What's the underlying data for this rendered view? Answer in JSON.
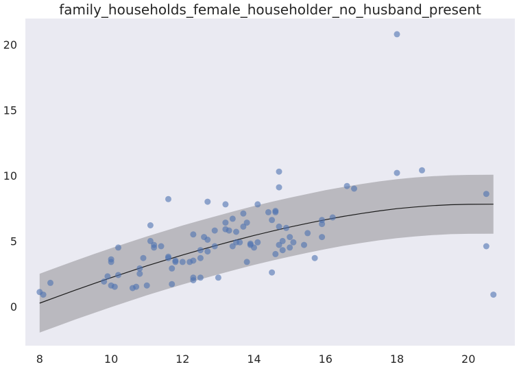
{
  "chart_data": {
    "type": "scatter",
    "title": "family_households_female_householder_no_husband_present",
    "xlabel": "",
    "ylabel": "",
    "xlim": [
      7.6,
      21.3
    ],
    "ylim": [
      -3.0,
      22.0
    ],
    "x_ticks": [
      8,
      10,
      12,
      14,
      16,
      18,
      20
    ],
    "y_ticks": [
      0,
      5,
      10,
      15,
      20
    ],
    "grid": false,
    "background": "#eaeaf2",
    "point_color": "#4c72b0",
    "band_color": "#a9a8ae",
    "fit_line_color": "#1a1a1a",
    "fit": {
      "x": [
        8.0,
        8.5,
        9.0,
        9.5,
        10.0,
        10.5,
        11.0,
        11.5,
        12.0,
        12.5,
        13.0,
        13.5,
        14.0,
        14.5,
        15.0,
        15.5,
        16.0,
        16.5,
        17.0,
        17.5,
        18.0,
        18.5,
        19.0,
        19.5,
        20.0,
        20.7
      ],
      "y": [
        0.25,
        0.75,
        1.25,
        1.73,
        2.2,
        2.65,
        3.1,
        3.52,
        3.93,
        4.32,
        4.7,
        5.07,
        5.42,
        5.75,
        6.06,
        6.35,
        6.63,
        6.88,
        7.1,
        7.3,
        7.47,
        7.6,
        7.7,
        7.77,
        7.8,
        7.81
      ],
      "lower": [
        -2.0,
        -1.5,
        -1.0,
        -0.52,
        -0.05,
        0.4,
        0.85,
        1.27,
        1.68,
        2.07,
        2.45,
        2.82,
        3.17,
        3.5,
        3.81,
        4.1,
        4.38,
        4.63,
        4.85,
        5.05,
        5.22,
        5.35,
        5.45,
        5.52,
        5.55,
        5.56
      ],
      "upper": [
        2.5,
        3.0,
        3.5,
        3.98,
        4.45,
        4.9,
        5.35,
        5.77,
        6.18,
        6.57,
        6.95,
        7.32,
        7.67,
        8.0,
        8.31,
        8.6,
        8.88,
        9.13,
        9.35,
        9.55,
        9.72,
        9.85,
        9.95,
        10.02,
        10.05,
        10.06
      ]
    },
    "points": [
      [
        8.0,
        1.1
      ],
      [
        8.1,
        0.9
      ],
      [
        8.3,
        1.8
      ],
      [
        9.8,
        1.9
      ],
      [
        9.9,
        2.3
      ],
      [
        10.0,
        3.6
      ],
      [
        10.0,
        3.4
      ],
      [
        10.0,
        1.6
      ],
      [
        10.1,
        1.5
      ],
      [
        10.2,
        4.5
      ],
      [
        10.2,
        2.4
      ],
      [
        10.6,
        1.4
      ],
      [
        10.7,
        1.5
      ],
      [
        10.8,
        2.9
      ],
      [
        10.8,
        2.5
      ],
      [
        10.9,
        3.7
      ],
      [
        11.0,
        1.6
      ],
      [
        11.1,
        6.2
      ],
      [
        11.1,
        5.0
      ],
      [
        11.2,
        4.7
      ],
      [
        11.2,
        4.5
      ],
      [
        11.4,
        4.6
      ],
      [
        11.6,
        8.2
      ],
      [
        11.6,
        3.8
      ],
      [
        11.6,
        3.7
      ],
      [
        11.7,
        2.9
      ],
      [
        11.7,
        1.7
      ],
      [
        11.8,
        3.5
      ],
      [
        11.8,
        3.4
      ],
      [
        12.0,
        3.4
      ],
      [
        12.2,
        3.4
      ],
      [
        12.3,
        5.5
      ],
      [
        12.3,
        3.5
      ],
      [
        12.3,
        2.2
      ],
      [
        12.3,
        2.0
      ],
      [
        12.5,
        4.3
      ],
      [
        12.5,
        3.7
      ],
      [
        12.5,
        2.2
      ],
      [
        12.6,
        5.3
      ],
      [
        12.7,
        8.0
      ],
      [
        12.7,
        5.1
      ],
      [
        12.7,
        4.2
      ],
      [
        12.9,
        5.8
      ],
      [
        12.9,
        4.6
      ],
      [
        13.0,
        2.2
      ],
      [
        13.2,
        7.8
      ],
      [
        13.2,
        6.4
      ],
      [
        13.2,
        5.9
      ],
      [
        13.3,
        5.8
      ],
      [
        13.4,
        6.7
      ],
      [
        13.4,
        4.6
      ],
      [
        13.5,
        5.7
      ],
      [
        13.5,
        4.9
      ],
      [
        13.6,
        4.9
      ],
      [
        13.7,
        7.1
      ],
      [
        13.7,
        6.1
      ],
      [
        13.8,
        6.4
      ],
      [
        13.8,
        3.4
      ],
      [
        13.9,
        4.8
      ],
      [
        13.9,
        4.7
      ],
      [
        14.0,
        4.5
      ],
      [
        14.1,
        7.8
      ],
      [
        14.1,
        4.9
      ],
      [
        14.4,
        7.2
      ],
      [
        14.5,
        6.6
      ],
      [
        14.5,
        2.6
      ],
      [
        14.6,
        7.3
      ],
      [
        14.6,
        7.2
      ],
      [
        14.6,
        4.0
      ],
      [
        14.7,
        10.3
      ],
      [
        14.7,
        9.1
      ],
      [
        14.7,
        6.1
      ],
      [
        14.7,
        4.7
      ],
      [
        14.8,
        5.0
      ],
      [
        14.8,
        4.3
      ],
      [
        14.9,
        6.0
      ],
      [
        15.0,
        5.3
      ],
      [
        15.0,
        4.5
      ],
      [
        15.1,
        4.9
      ],
      [
        15.4,
        4.7
      ],
      [
        15.5,
        5.6
      ],
      [
        15.7,
        3.7
      ],
      [
        15.9,
        6.6
      ],
      [
        15.9,
        6.3
      ],
      [
        15.9,
        5.3
      ],
      [
        16.2,
        6.8
      ],
      [
        16.6,
        9.2
      ],
      [
        16.8,
        9.0
      ],
      [
        18.0,
        20.8
      ],
      [
        18.0,
        10.2
      ],
      [
        18.7,
        10.4
      ],
      [
        20.5,
        8.6
      ],
      [
        20.5,
        4.6
      ],
      [
        20.7,
        0.9
      ]
    ]
  }
}
